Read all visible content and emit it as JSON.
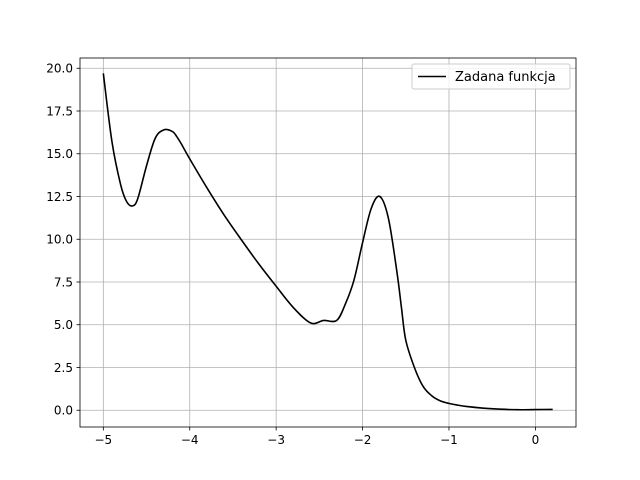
{
  "chart_data": {
    "type": "line",
    "title": "",
    "xlabel": "",
    "ylabel": "",
    "xlim": [
      -5.27,
      0.47
    ],
    "ylim": [
      -0.98,
      20.6
    ],
    "grid": true,
    "legend_position": "top-right",
    "x_ticks": [
      -5,
      -4,
      -3,
      -2,
      -1,
      0
    ],
    "x_tick_labels": [
      "−5",
      "−4",
      "−3",
      "−2",
      "−1",
      "0"
    ],
    "y_ticks": [
      0,
      2.5,
      5,
      7.5,
      10,
      12.5,
      15,
      17.5,
      20
    ],
    "y_tick_labels": [
      "0.0",
      "2.5",
      "5.0",
      "7.5",
      "10.0",
      "12.5",
      "15.0",
      "17.5",
      "20.0"
    ],
    "series": [
      {
        "name": "Zadana funkcja",
        "color": "#000000",
        "x": [
          -5.0,
          -4.9,
          -4.8,
          -4.73,
          -4.66,
          -4.6,
          -4.5,
          -4.4,
          -4.3,
          -4.2,
          -4.15,
          -4.1,
          -4.0,
          -3.8,
          -3.6,
          -3.4,
          -3.2,
          -3.0,
          -2.8,
          -2.6,
          -2.45,
          -2.3,
          -2.2,
          -2.1,
          -2.0,
          -1.9,
          -1.8,
          -1.7,
          -1.6,
          -1.55,
          -1.5,
          -1.4,
          -1.3,
          -1.2,
          -1.1,
          -1.0,
          -0.9,
          -0.8,
          -0.6,
          -0.4,
          -0.2,
          0.0,
          0.2
        ],
        "y": [
          19.7,
          15.7,
          13.2,
          12.2,
          11.95,
          12.4,
          14.3,
          15.9,
          16.4,
          16.3,
          16.0,
          15.6,
          14.7,
          13.0,
          11.4,
          9.95,
          8.55,
          7.25,
          6.0,
          5.1,
          5.25,
          5.25,
          6.2,
          7.6,
          9.8,
          11.8,
          12.5,
          11.2,
          8.0,
          6.0,
          4.1,
          2.5,
          1.4,
          0.85,
          0.55,
          0.4,
          0.3,
          0.22,
          0.12,
          0.06,
          0.03,
          0.04,
          0.05
        ]
      }
    ]
  }
}
